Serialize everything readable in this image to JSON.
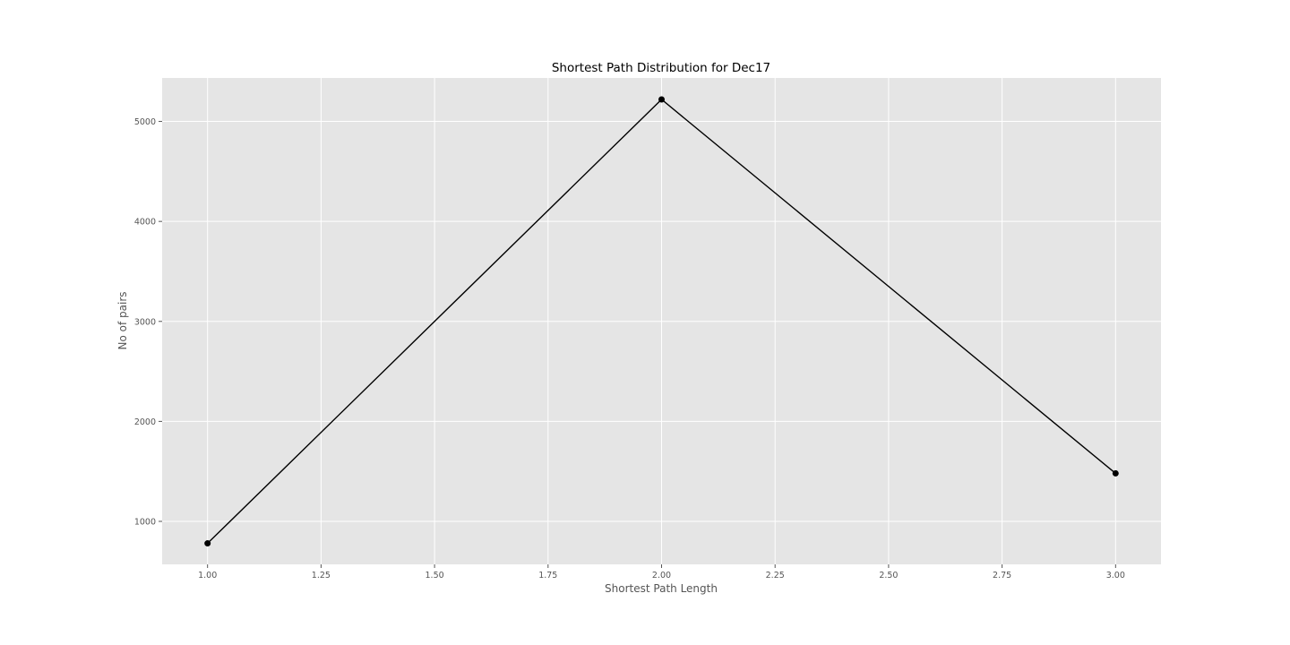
{
  "chart_data": {
    "type": "line",
    "title": "Shortest Path Distribution for Dec17",
    "xlabel": "Shortest Path Length",
    "ylabel": "No of pairs",
    "x": [
      1.0,
      2.0,
      3.0
    ],
    "series": [
      {
        "values": [
          780,
          5220,
          1480
        ]
      }
    ],
    "xlim": [
      0.9,
      3.1
    ],
    "ylim": [
      570,
      5435
    ],
    "xticks": [
      1.0,
      1.25,
      1.5,
      1.75,
      2.0,
      2.25,
      2.5,
      2.75,
      3.0
    ],
    "xtick_labels": [
      "1.00",
      "1.25",
      "1.50",
      "1.75",
      "2.00",
      "2.25",
      "2.50",
      "2.75",
      "3.00"
    ],
    "yticks": [
      1000,
      2000,
      3000,
      4000,
      5000
    ],
    "ytick_labels": [
      "1000",
      "2000",
      "3000",
      "4000",
      "5000"
    ],
    "grid": true,
    "colors": {
      "background": "#e5e5e5",
      "grid": "#ffffff",
      "line": "#000000",
      "marker": "#000000",
      "tick_text": "#555555"
    }
  }
}
